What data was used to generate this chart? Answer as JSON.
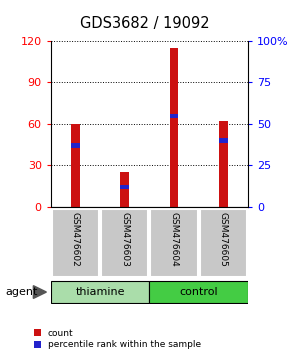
{
  "title": "GDS3682 / 19092",
  "samples": [
    "GSM476602",
    "GSM476603",
    "GSM476604",
    "GSM476605"
  ],
  "count_values": [
    60,
    25,
    115,
    62
  ],
  "percentile_values": [
    37,
    12,
    55,
    40
  ],
  "groups": [
    {
      "label": "thiamine",
      "samples_idx": [
        0,
        1
      ],
      "color": "#aaddaa"
    },
    {
      "label": "control",
      "samples_idx": [
        2,
        3
      ],
      "color": "#44cc44"
    }
  ],
  "bar_color": "#cc1111",
  "percentile_color": "#2222cc",
  "left_ylim": [
    0,
    120
  ],
  "right_ylim": [
    0,
    100
  ],
  "left_yticks": [
    0,
    30,
    60,
    90,
    120
  ],
  "right_yticks": [
    0,
    25,
    50,
    75,
    100
  ],
  "right_yticklabels": [
    "0",
    "25",
    "50",
    "75",
    "100%"
  ],
  "bar_width": 0.18,
  "label_bg_color": "#c8c8c8",
  "agent_label": "agent",
  "legend_count_label": "count",
  "legend_percentile_label": "percentile rank within the sample",
  "fig_width": 2.9,
  "fig_height": 3.54
}
